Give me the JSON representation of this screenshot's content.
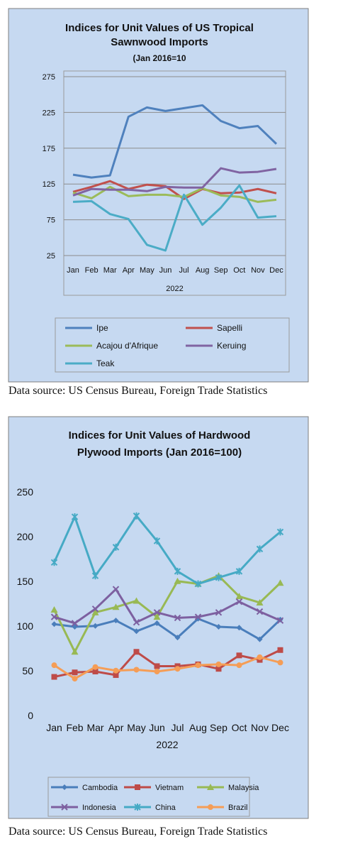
{
  "captions": {
    "chart1": "Data source: US Census Bureau, Foreign Trade Statistics",
    "chart2": "Data source: US Census Bureau, Foreign Trade Statistics"
  },
  "chart_data": [
    {
      "type": "line",
      "title_lines": [
        "Indices for Unit Values of US Tropical",
        "Sawnwood Imports"
      ],
      "subtitle": "(Jan 2016=10",
      "xlabel": "2022",
      "ylabel": "",
      "ylim": [
        25,
        275
      ],
      "yticks": [
        25,
        75,
        125,
        175,
        225,
        275
      ],
      "grid": true,
      "legend_position": "bottom",
      "categories": [
        "Jan",
        "Feb",
        "Mar",
        "Apr",
        "May",
        "Jun",
        "Jul",
        "Aug",
        "Sep",
        "Oct",
        "Nov",
        "Dec"
      ],
      "series": [
        {
          "name": "Ipe",
          "color": "#4f81bd",
          "marker": "none",
          "values": [
            138,
            134,
            137,
            219,
            232,
            227,
            231,
            235,
            213,
            203,
            206,
            181
          ]
        },
        {
          "name": "Sapelli",
          "color": "#c0504d",
          "marker": "none",
          "values": [
            114,
            121,
            129,
            118,
            124,
            122,
            104,
            118,
            112,
            113,
            118,
            112
          ]
        },
        {
          "name": "Acajou d'Afrique",
          "color": "#9bbb59",
          "marker": "none",
          "values": [
            113,
            105,
            121,
            108,
            110,
            110,
            107,
            119,
            109,
            107,
            100,
            103
          ]
        },
        {
          "name": "Keruing",
          "color": "#8064a2",
          "marker": "none",
          "values": [
            109,
            118,
            117,
            117,
            115,
            121,
            120,
            120,
            147,
            141,
            142,
            146
          ]
        },
        {
          "name": "Teak",
          "color": "#4bacc6",
          "marker": "none",
          "values": [
            100,
            101,
            83,
            76,
            40,
            32,
            110,
            68,
            92,
            123,
            78,
            80
          ]
        }
      ]
    },
    {
      "type": "line",
      "title_lines": [
        "Indices for Unit Values of Hardwood",
        "Plywood Imports (Jan 2016=100)"
      ],
      "subtitle": "",
      "xlabel": "2022",
      "ylabel": "",
      "ylim": [
        0,
        250
      ],
      "yticks": [
        0,
        50,
        100,
        150,
        200,
        250
      ],
      "grid": false,
      "legend_position": "bottom",
      "categories": [
        "Jan",
        "Feb",
        "Mar",
        "Apr",
        "May",
        "Jun",
        "Jul",
        "Aug",
        "Sep",
        "Oct",
        "Nov",
        "Dec"
      ],
      "series": [
        {
          "name": "Cambodia",
          "color": "#4a7ebb",
          "marker": "diamond",
          "values": [
            103,
            100,
            101,
            107,
            95,
            104,
            88,
            109,
            100,
            99,
            86,
            108
          ]
        },
        {
          "name": "Vietnam",
          "color": "#be4b48",
          "marker": "square",
          "values": [
            44,
            49,
            50,
            46,
            72,
            56,
            56,
            58,
            53,
            68,
            63,
            74
          ]
        },
        {
          "name": "Malaysia",
          "color": "#98b954",
          "marker": "triangle",
          "values": [
            119,
            72,
            116,
            122,
            129,
            111,
            151,
            148,
            157,
            134,
            127,
            149
          ]
        },
        {
          "name": "Indonesia",
          "color": "#7d60a0",
          "marker": "x",
          "values": [
            111,
            104,
            120,
            142,
            105,
            116,
            110,
            111,
            116,
            128,
            117,
            107
          ]
        },
        {
          "name": "China",
          "color": "#46aac5",
          "marker": "star",
          "values": [
            172,
            223,
            157,
            189,
            224,
            196,
            162,
            148,
            155,
            162,
            187,
            206
          ]
        },
        {
          "name": "Brazil",
          "color": "#f59d56",
          "marker": "circle",
          "values": [
            57,
            42,
            55,
            51,
            52,
            50,
            53,
            57,
            58,
            57,
            66,
            60
          ]
        }
      ]
    }
  ]
}
